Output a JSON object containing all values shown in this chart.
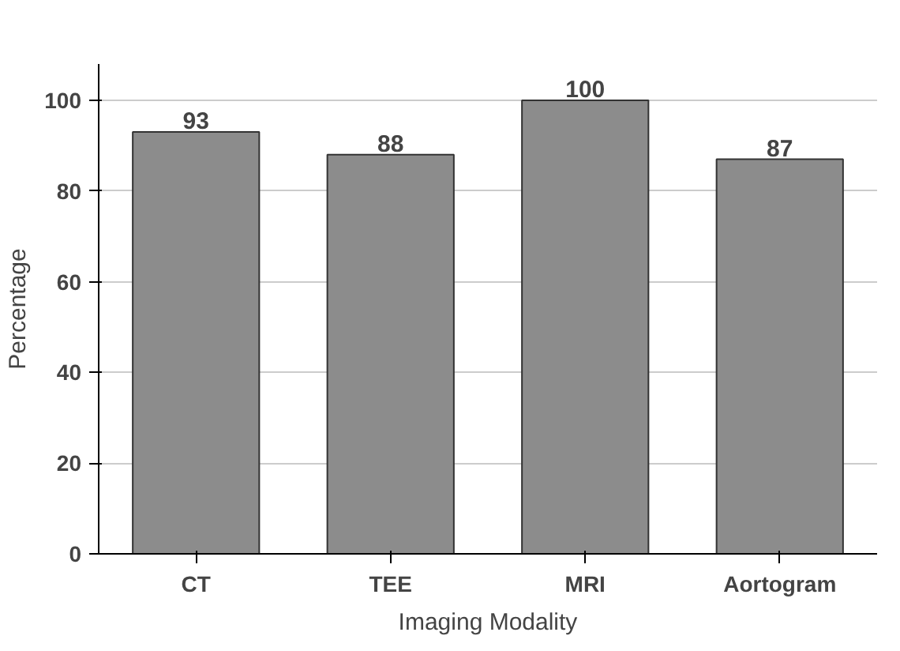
{
  "chart_data": {
    "type": "bar",
    "xlabel": "Imaging Modality",
    "ylabel": "Percentage",
    "categories": [
      "CT",
      "TEE",
      "MRI",
      "Aortogram"
    ],
    "values": [
      93,
      88,
      100,
      87
    ],
    "color": "#8c8c8c",
    "ylim": [
      0,
      108
    ],
    "yticks": [
      0,
      20,
      40,
      60,
      80,
      100
    ],
    "grid": "y",
    "data_labels": true
  }
}
